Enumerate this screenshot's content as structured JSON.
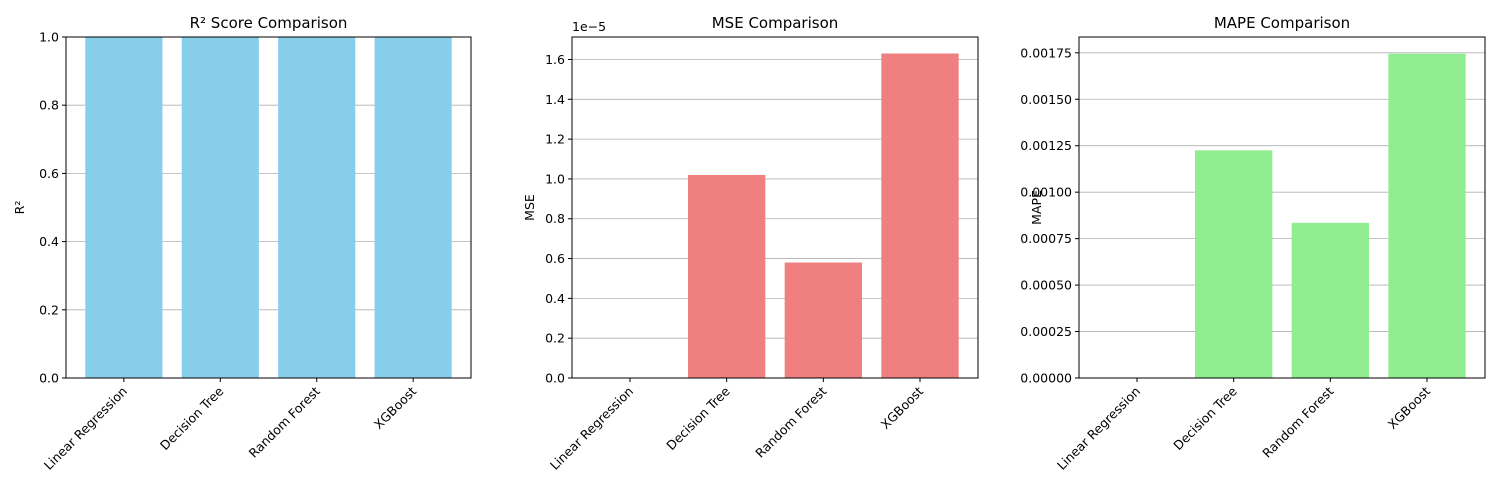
{
  "chart_data": [
    {
      "type": "bar",
      "title": "R² Score Comparison",
      "xlabel": "",
      "ylabel": "R²",
      "categories": [
        "Linear Regression",
        "Decision Tree",
        "Random Forest",
        "XGBoost"
      ],
      "values": [
        1.0,
        1.0,
        1.0,
        1.0
      ],
      "ylim": [
        0,
        1.0
      ],
      "yticks": [
        "0.0",
        "0.2",
        "0.4",
        "0.6",
        "0.8",
        "1.0"
      ],
      "tick_values": [
        0,
        0.2,
        0.4,
        0.6,
        0.8,
        1.0
      ],
      "offset_text": "",
      "color": "#87ceeb",
      "grid": "y"
    },
    {
      "type": "bar",
      "title": "MSE Comparison",
      "xlabel": "",
      "ylabel": "MSE",
      "categories": [
        "Linear Regression",
        "Decision Tree",
        "Random Forest",
        "XGBoost"
      ],
      "values": [
        0,
        1.02e-05,
        5.8e-06,
        1.63e-05
      ],
      "ylim": [
        0,
        1.713e-05
      ],
      "yticks": [
        "0.0",
        "0.2",
        "0.4",
        "0.6",
        "0.8",
        "1.0",
        "1.2",
        "1.4",
        "1.6"
      ],
      "tick_values": [
        0,
        2e-06,
        4e-06,
        6e-06,
        8e-06,
        1e-05,
        1.2e-05,
        1.4e-05,
        1.6e-05
      ],
      "offset_text": "1e−5",
      "color": "#f08080",
      "grid": "y"
    },
    {
      "type": "bar",
      "title": "MAPE Comparison",
      "xlabel": "",
      "ylabel": "MAPE",
      "categories": [
        "Linear Regression",
        "Decision Tree",
        "Random Forest",
        "XGBoost"
      ],
      "values": [
        0,
        0.001225,
        0.000835,
        0.001745
      ],
      "ylim": [
        0,
        0.001835
      ],
      "yticks": [
        "0.00000",
        "0.00025",
        "0.00050",
        "0.00075",
        "0.00100",
        "0.00125",
        "0.00150",
        "0.00175"
      ],
      "tick_values": [
        0,
        0.00025,
        0.0005,
        0.00075,
        0.001,
        0.00125,
        0.0015,
        0.00175
      ],
      "offset_text": "",
      "color": "#90ee90",
      "grid": "y"
    }
  ]
}
